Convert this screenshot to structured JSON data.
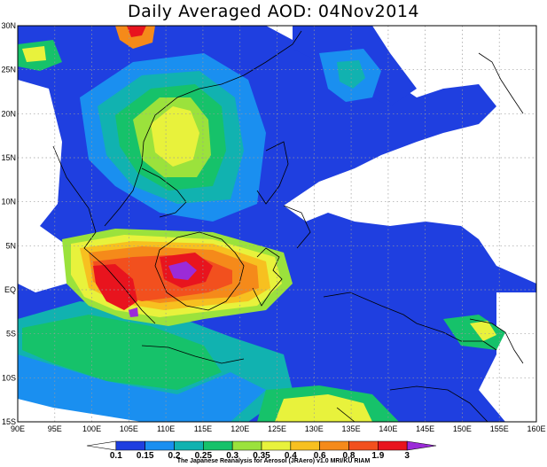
{
  "title": "Daily Averaged AOD: 04Nov2014",
  "credit": "The Japanese Reanalysis for Aerosol (JRAero) v1.0 MRI/KU RIAM",
  "map": {
    "lon_range": [
      90,
      160
    ],
    "lat_range": [
      -15,
      30
    ],
    "lon_ticks": [
      "90E",
      "95E",
      "100E",
      "105E",
      "110E",
      "115E",
      "120E",
      "125E",
      "130E",
      "135E",
      "140E",
      "145E",
      "150E",
      "155E",
      "160E"
    ],
    "lat_ticks": [
      "30N",
      "25N",
      "20N",
      "15N",
      "10N",
      "5N",
      "EQ",
      "5S",
      "10S",
      "15S"
    ],
    "gridlines": "dotted"
  },
  "colorbar": {
    "levels": [
      "0.1",
      "0.15",
      "0.2",
      "0.25",
      "0.3",
      "0.35",
      "0.4",
      "0.6",
      "0.8",
      "1.9",
      "3"
    ],
    "colors": [
      "#ffffff",
      "#1f3fe0",
      "#1a8ff0",
      "#11b2b0",
      "#16c26a",
      "#9be23c",
      "#e8f23c",
      "#f7c020",
      "#f58a1a",
      "#f2501e",
      "#e8141e",
      "#9b2bd8"
    ]
  }
}
